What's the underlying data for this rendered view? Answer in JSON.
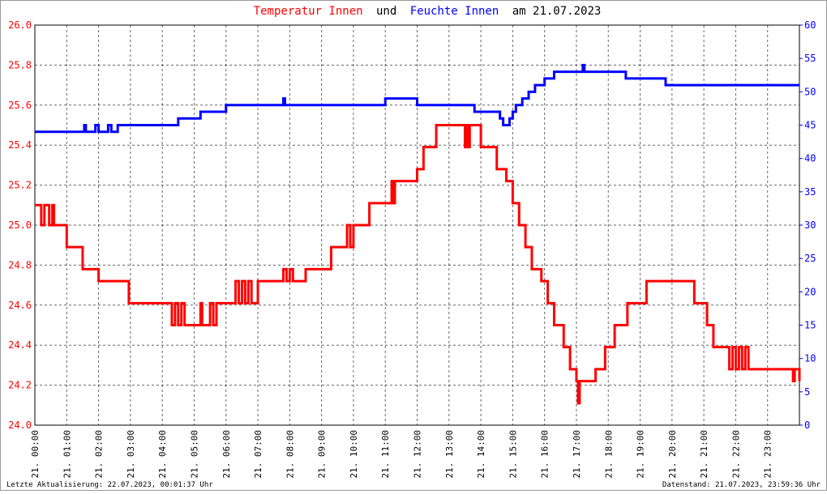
{
  "chart_data": {
    "type": "line",
    "step": true,
    "title_join": "und",
    "title_date": "am 21.07.2023",
    "footer_left": "Letzte Aktualisierung: 22.07.2023, 00:01:37 Uhr",
    "footer_right": "Datenstand: 21.07.2023, 23:59:36 Uhr",
    "xlim": [
      0,
      24
    ],
    "xticks": [
      {
        "value": 0,
        "label": "21. 00:00"
      },
      {
        "value": 1,
        "label": "21. 01:00"
      },
      {
        "value": 2,
        "label": "21. 02:00"
      },
      {
        "value": 3,
        "label": "21. 03:00"
      },
      {
        "value": 4,
        "label": "21. 04:00"
      },
      {
        "value": 5,
        "label": "21. 05:00"
      },
      {
        "value": 6,
        "label": "21. 06:00"
      },
      {
        "value": 7,
        "label": "21. 07:00"
      },
      {
        "value": 8,
        "label": "21. 08:00"
      },
      {
        "value": 9,
        "label": "21. 09:00"
      },
      {
        "value": 10,
        "label": "21. 10:00"
      },
      {
        "value": 11,
        "label": "21. 11:00"
      },
      {
        "value": 12,
        "label": "21. 12:00"
      },
      {
        "value": 13,
        "label": "21. 13:00"
      },
      {
        "value": 14,
        "label": "21. 14:00"
      },
      {
        "value": 15,
        "label": "21. 15:00"
      },
      {
        "value": 16,
        "label": "21. 16:00"
      },
      {
        "value": 17,
        "label": "21. 17:00"
      },
      {
        "value": 18,
        "label": "21. 18:00"
      },
      {
        "value": 19,
        "label": "21. 19:00"
      },
      {
        "value": 20,
        "label": "21. 20:00"
      },
      {
        "value": 21,
        "label": "21. 21:00"
      },
      {
        "value": 22,
        "label": "21. 22:00"
      },
      {
        "value": 23,
        "label": "21. 23:00"
      }
    ],
    "ylim": [
      24.0,
      26.0
    ],
    "yticks": [
      {
        "value": 24.0,
        "label": "24.0"
      },
      {
        "value": 24.2,
        "label": "24.2"
      },
      {
        "value": 24.4,
        "label": "24.4"
      },
      {
        "value": 24.6,
        "label": "24.6"
      },
      {
        "value": 24.8,
        "label": "24.8"
      },
      {
        "value": 25.0,
        "label": "25.0"
      },
      {
        "value": 25.2,
        "label": "25.2"
      },
      {
        "value": 25.4,
        "label": "25.4"
      },
      {
        "value": 25.6,
        "label": "25.6"
      },
      {
        "value": 25.8,
        "label": "25.8"
      },
      {
        "value": 26.0,
        "label": "26.0"
      }
    ],
    "y2lim": [
      0,
      60
    ],
    "y2ticks": [
      0,
      5,
      10,
      15,
      20,
      25,
      30,
      35,
      40,
      45,
      50,
      55,
      60
    ],
    "grid": true,
    "series": [
      {
        "name": "Temperatur Innen",
        "color": "#ff0000",
        "x": [
          0,
          0.2,
          0.3,
          0.45,
          0.55,
          0.6,
          1.0,
          1.5,
          2.0,
          2.95,
          3.0,
          4.3,
          4.4,
          4.5,
          4.6,
          4.7,
          5.2,
          5.25,
          5.5,
          5.6,
          5.7,
          5.8,
          6.3,
          6.4,
          6.5,
          6.6,
          6.7,
          6.8,
          7.0,
          7.8,
          7.9,
          8.0,
          8.1,
          8.5,
          9.3,
          9.8,
          9.9,
          10.0,
          10.5,
          11.2,
          11.25,
          11.3,
          12.0,
          12.2,
          12.6,
          13.5,
          13.55,
          13.6,
          13.65,
          14.0,
          14.5,
          14.8,
          15.0,
          15.2,
          15.4,
          15.6,
          15.9,
          16.1,
          16.3,
          16.6,
          16.8,
          17.0,
          17.05,
          17.1,
          17.6,
          17.9,
          18.2,
          18.6,
          19.2,
          20.7,
          21.1,
          21.3,
          21.8,
          21.9,
          22.0,
          22.1,
          22.2,
          22.3,
          22.4,
          23.8,
          23.85,
          24
        ],
        "values": [
          25.1,
          25.0,
          25.1,
          25.0,
          25.1,
          25.0,
          24.89,
          24.78,
          24.72,
          24.61,
          24.61,
          24.5,
          24.61,
          24.5,
          24.61,
          24.5,
          24.61,
          24.5,
          24.61,
          24.5,
          24.61,
          24.61,
          24.72,
          24.61,
          24.72,
          24.61,
          24.72,
          24.61,
          24.72,
          24.78,
          24.72,
          24.78,
          24.72,
          24.78,
          24.89,
          25.0,
          24.89,
          25.0,
          25.11,
          25.22,
          25.11,
          25.22,
          25.28,
          25.39,
          25.5,
          25.39,
          25.5,
          25.39,
          25.5,
          25.39,
          25.28,
          25.22,
          25.11,
          25.0,
          24.89,
          24.78,
          24.72,
          24.61,
          24.5,
          24.39,
          24.28,
          24.22,
          24.11,
          24.22,
          24.28,
          24.39,
          24.5,
          24.61,
          24.72,
          24.61,
          24.5,
          24.39,
          24.28,
          24.39,
          24.28,
          24.39,
          24.28,
          24.39,
          24.28,
          24.22,
          24.28,
          24.22
        ]
      },
      {
        "name": "Feuchte Innen",
        "color": "#0000ff",
        "axis": "y2",
        "x": [
          0,
          1.55,
          1.6,
          1.9,
          2.0,
          2.3,
          2.4,
          2.6,
          4.5,
          5.2,
          6.0,
          7.8,
          7.85,
          11.0,
          12.0,
          13.8,
          14.6,
          14.7,
          14.9,
          15.0,
          15.1,
          15.3,
          15.5,
          15.7,
          16.0,
          16.3,
          17.2,
          17.25,
          18.5,
          18.55,
          18.6,
          19.8,
          24
        ],
        "values": [
          44,
          45,
          44,
          45,
          44,
          45,
          44,
          45,
          46,
          47,
          48,
          49,
          48,
          49,
          48,
          47,
          46,
          45,
          46,
          47,
          48,
          49,
          50,
          51,
          52,
          53,
          54,
          53,
          53,
          52,
          52,
          51,
          51
        ]
      }
    ]
  }
}
